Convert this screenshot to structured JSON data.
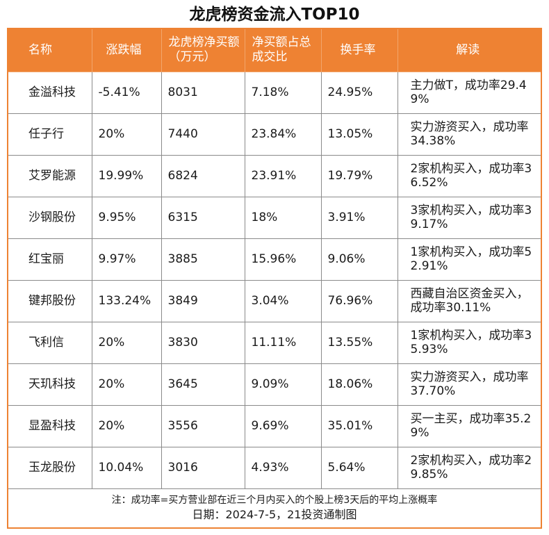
{
  "title": "龙虎榜资金流入TOP10",
  "accent_color": "#ee8233",
  "headers": {
    "name": "名称",
    "change": "涨跌幅",
    "net_buy": "龙虎榜净买额（万元）",
    "net_ratio": "净买额占总成交比",
    "turnover": "换手率",
    "comment": "解读"
  },
  "rows": [
    {
      "name": "金溢科技",
      "change": "-5.41%",
      "net_buy": "8031",
      "net_ratio": "7.18%",
      "turnover": "24.95%",
      "comment": "主力做T，成功率29.49%"
    },
    {
      "name": "任子行",
      "change": "20%",
      "net_buy": "7440",
      "net_ratio": "23.84%",
      "turnover": "13.05%",
      "comment": "实力游资买入，成功率34.38%"
    },
    {
      "name": "艾罗能源",
      "change": "19.99%",
      "net_buy": "6824",
      "net_ratio": "23.91%",
      "turnover": "19.79%",
      "comment": "2家机构买入，成功率36.52%"
    },
    {
      "name": "沙钢股份",
      "change": "9.95%",
      "net_buy": "6315",
      "net_ratio": "18%",
      "turnover": "3.91%",
      "comment": "3家机构买入，成功率39.17%"
    },
    {
      "name": "红宝丽",
      "change": "9.97%",
      "net_buy": "3885",
      "net_ratio": "15.96%",
      "turnover": "9.06%",
      "comment": "1家机构买入，成功率52.91%"
    },
    {
      "name": "键邦股份",
      "change": "133.24%",
      "net_buy": "3849",
      "net_ratio": "3.04%",
      "turnover": "76.96%",
      "comment": "西藏自治区资金买入，成功率30.11%"
    },
    {
      "name": "飞利信",
      "change": "20%",
      "net_buy": "3830",
      "net_ratio": "11.11%",
      "turnover": "13.55%",
      "comment": "1家机构买入，成功率35.93%"
    },
    {
      "name": "天玑科技",
      "change": "20%",
      "net_buy": "3645",
      "net_ratio": "9.09%",
      "turnover": "18.06%",
      "comment": "实力游资买入，成功率37.70%"
    },
    {
      "name": "显盈科技",
      "change": "20%",
      "net_buy": "3556",
      "net_ratio": "9.69%",
      "turnover": "35.01%",
      "comment": "买一主买，成功率35.29%"
    },
    {
      "name": "玉龙股份",
      "change": "10.04%",
      "net_buy": "3016",
      "net_ratio": "4.93%",
      "turnover": "5.64%",
      "comment": "2家机构买入，成功率29.85%"
    }
  ],
  "footer": {
    "note": "注：成功率=买方营业部在近三个月内买入的个股上榜3天后的平均上涨概率",
    "date": "日期：2024-7-5，21投资通制图"
  }
}
